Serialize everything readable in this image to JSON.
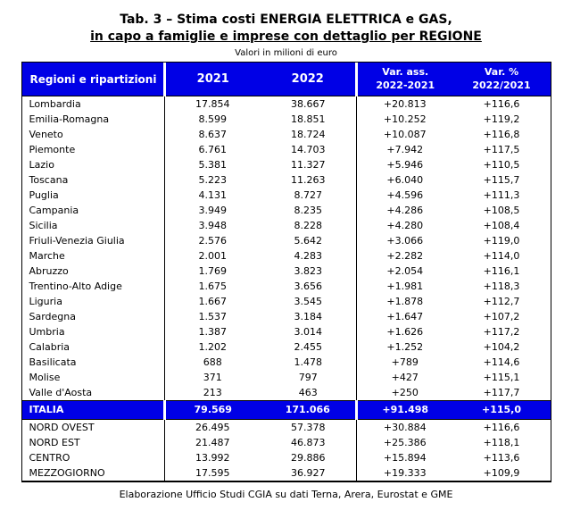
{
  "title": {
    "line1": "Tab. 3 – Stima costi ENERGIA ELETTRICA e GAS,",
    "line2": "in capo a famiglie e imprese con dettaglio per REGIONE",
    "subtitle": "Valori in milioni di euro"
  },
  "colors": {
    "header_blue": "#0000E6",
    "header_text": "#FFFFFF",
    "body_text": "#000000"
  },
  "table": {
    "columns": [
      "Regioni e ripartizioni",
      "2021",
      "2022",
      "Var. ass.\n2022-2021",
      "Var. %\n2022/2021"
    ],
    "rows": [
      {
        "kind": "region",
        "name": "Lombardia",
        "y2021": "17.854",
        "y2022": "38.667",
        "var_ass": "+20.813",
        "var_pct": "+116,6"
      },
      {
        "kind": "region",
        "name": "Emilia-Romagna",
        "y2021": "8.599",
        "y2022": "18.851",
        "var_ass": "+10.252",
        "var_pct": "+119,2"
      },
      {
        "kind": "region",
        "name": "Veneto",
        "y2021": "8.637",
        "y2022": "18.724",
        "var_ass": "+10.087",
        "var_pct": "+116,8"
      },
      {
        "kind": "region",
        "name": "Piemonte",
        "y2021": "6.761",
        "y2022": "14.703",
        "var_ass": "+7.942",
        "var_pct": "+117,5"
      },
      {
        "kind": "region",
        "name": "Lazio",
        "y2021": "5.381",
        "y2022": "11.327",
        "var_ass": "+5.946",
        "var_pct": "+110,5"
      },
      {
        "kind": "region",
        "name": "Toscana",
        "y2021": "5.223",
        "y2022": "11.263",
        "var_ass": "+6.040",
        "var_pct": "+115,7"
      },
      {
        "kind": "region",
        "name": "Puglia",
        "y2021": "4.131",
        "y2022": "8.727",
        "var_ass": "+4.596",
        "var_pct": "+111,3"
      },
      {
        "kind": "region",
        "name": "Campania",
        "y2021": "3.949",
        "y2022": "8.235",
        "var_ass": "+4.286",
        "var_pct": "+108,5"
      },
      {
        "kind": "region",
        "name": "Sicilia",
        "y2021": "3.948",
        "y2022": "8.228",
        "var_ass": "+4.280",
        "var_pct": "+108,4"
      },
      {
        "kind": "region",
        "name": "Friuli-Venezia Giulia",
        "y2021": "2.576",
        "y2022": "5.642",
        "var_ass": "+3.066",
        "var_pct": "+119,0"
      },
      {
        "kind": "region",
        "name": "Marche",
        "y2021": "2.001",
        "y2022": "4.283",
        "var_ass": "+2.282",
        "var_pct": "+114,0"
      },
      {
        "kind": "region",
        "name": "Abruzzo",
        "y2021": "1.769",
        "y2022": "3.823",
        "var_ass": "+2.054",
        "var_pct": "+116,1"
      },
      {
        "kind": "region",
        "name": "Trentino-Alto Adige",
        "y2021": "1.675",
        "y2022": "3.656",
        "var_ass": "+1.981",
        "var_pct": "+118,3"
      },
      {
        "kind": "region",
        "name": "Liguria",
        "y2021": "1.667",
        "y2022": "3.545",
        "var_ass": "+1.878",
        "var_pct": "+112,7"
      },
      {
        "kind": "region",
        "name": "Sardegna",
        "y2021": "1.537",
        "y2022": "3.184",
        "var_ass": "+1.647",
        "var_pct": "+107,2"
      },
      {
        "kind": "region",
        "name": "Umbria",
        "y2021": "1.387",
        "y2022": "3.014",
        "var_ass": "+1.626",
        "var_pct": "+117,2"
      },
      {
        "kind": "region",
        "name": "Calabria",
        "y2021": "1.202",
        "y2022": "2.455",
        "var_ass": "+1.252",
        "var_pct": "+104,2"
      },
      {
        "kind": "region",
        "name": "Basilicata",
        "y2021": "688",
        "y2022": "1.478",
        "var_ass": "+789",
        "var_pct": "+114,6"
      },
      {
        "kind": "region",
        "name": "Molise",
        "y2021": "371",
        "y2022": "797",
        "var_ass": "+427",
        "var_pct": "+115,1"
      },
      {
        "kind": "region",
        "name": "Valle d'Aosta",
        "y2021": "213",
        "y2022": "463",
        "var_ass": "+250",
        "var_pct": "+117,7"
      },
      {
        "kind": "total",
        "name": "ITALIA",
        "y2021": "79.569",
        "y2022": "171.066",
        "var_ass": "+91.498",
        "var_pct": "+115,0"
      },
      {
        "kind": "area",
        "name": "NORD OVEST",
        "y2021": "26.495",
        "y2022": "57.378",
        "var_ass": "+30.884",
        "var_pct": "+116,6"
      },
      {
        "kind": "area",
        "name": "NORD EST",
        "y2021": "21.487",
        "y2022": "46.873",
        "var_ass": "+25.386",
        "var_pct": "+118,1"
      },
      {
        "kind": "area",
        "name": "CENTRO",
        "y2021": "13.992",
        "y2022": "29.886",
        "var_ass": "+15.894",
        "var_pct": "+113,6"
      },
      {
        "kind": "area",
        "name": "MEZZOGIORNO",
        "y2021": "17.595",
        "y2022": "36.927",
        "var_ass": "+19.333",
        "var_pct": "+109,9"
      }
    ]
  },
  "footer": "Elaborazione Ufficio Studi CGIA su dati Terna, Arera, Eurostat e GME"
}
